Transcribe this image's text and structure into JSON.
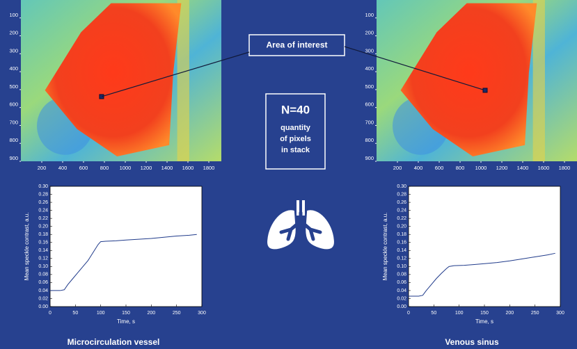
{
  "chart_data": [
    {
      "type": "image",
      "xlim": [
        0,
        1920
      ],
      "ylim": [
        0,
        900
      ],
      "xticks": [
        200,
        400,
        600,
        800,
        1000,
        1200,
        1400,
        1600,
        1800
      ],
      "yticks": [
        100,
        200,
        300,
        400,
        500,
        600,
        700,
        800,
        900
      ],
      "marker": [
        773,
        539
      ]
    },
    {
      "type": "image",
      "xlim": [
        0,
        1920
      ],
      "ylim": [
        0,
        900
      ],
      "xticks": [
        200,
        400,
        600,
        800,
        1000,
        1200,
        1400,
        1600,
        1800
      ],
      "yticks": [
        100,
        200,
        300,
        400,
        500,
        600,
        700,
        800,
        900
      ],
      "marker": [
        1040,
        504
      ]
    },
    {
      "type": "line",
      "title": "Microcirculation vessel",
      "xlabel": "Time, s",
      "ylabel": "Mean speckle contrast, a.u.",
      "color": "#1f3a8a",
      "xlim": [
        0,
        300
      ],
      "ylim": [
        0,
        0.3
      ],
      "xticks": [
        0,
        50,
        100,
        150,
        200,
        250,
        300
      ],
      "yticks": [
        {
          "value": 0,
          "label": "0.00"
        },
        0.02,
        0.04,
        0.06,
        0.08,
        {
          "value": 0.1,
          "label": "0.10"
        },
        0.12,
        0.14,
        0.16,
        0.18,
        {
          "value": 0.2,
          "label": "0.20"
        },
        0.22,
        0.24,
        0.26,
        0.28,
        {
          "value": 0.3,
          "label": "0.30"
        }
      ],
      "x": [
        0,
        10,
        20,
        28,
        35,
        45,
        55,
        65,
        75,
        85,
        95,
        100,
        110,
        130,
        150,
        175,
        200,
        225,
        250,
        275,
        290
      ],
      "values": [
        0.04,
        0.04,
        0.04,
        0.042,
        0.055,
        0.07,
        0.085,
        0.1,
        0.115,
        0.135,
        0.155,
        0.162,
        0.163,
        0.164,
        0.166,
        0.168,
        0.17,
        0.173,
        0.176,
        0.178,
        0.18
      ]
    },
    {
      "type": "line",
      "title": "Venous sinus",
      "xlabel": "Time, s",
      "ylabel": "Mean speckle contrast, a.u.",
      "color": "#1f3a8a",
      "xlim": [
        0,
        300
      ],
      "ylim": [
        0,
        0.3
      ],
      "xticks": [
        0,
        50,
        100,
        150,
        200,
        250,
        300
      ],
      "yticks": [
        {
          "value": 0,
          "label": "0.00"
        },
        0.02,
        0.04,
        0.06,
        0.08,
        {
          "value": 0.1,
          "label": "0.10"
        },
        0.12,
        0.14,
        0.16,
        0.18,
        {
          "value": 0.2,
          "label": "0.20"
        },
        0.22,
        0.24,
        0.26,
        0.28,
        {
          "value": 0.3,
          "label": "0.30"
        }
      ],
      "x": [
        0,
        10,
        20,
        28,
        35,
        45,
        55,
        65,
        75,
        80,
        90,
        110,
        130,
        150,
        175,
        200,
        225,
        250,
        275,
        290
      ],
      "values": [
        0.026,
        0.026,
        0.026,
        0.028,
        0.04,
        0.055,
        0.07,
        0.083,
        0.095,
        0.1,
        0.102,
        0.103,
        0.105,
        0.107,
        0.11,
        0.114,
        0.119,
        0.124,
        0.129,
        0.133
      ]
    }
  ],
  "annotation": "Area of interest",
  "summary": {
    "count": "N=40",
    "lines": [
      "quantity",
      "of pixels",
      "in stack"
    ]
  }
}
